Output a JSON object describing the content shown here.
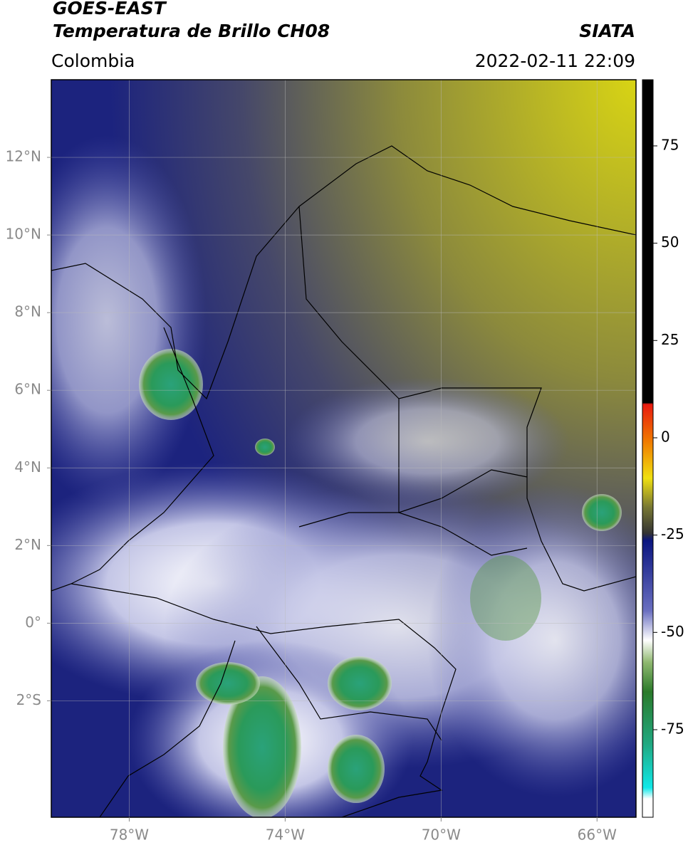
{
  "header": {
    "title": "GOES-EAST",
    "subtitle": "Temperatura de Brillo CH08",
    "source": "SIATA",
    "region": "Colombia",
    "datetime": "2022-02-11 22:09"
  },
  "map": {
    "xlim": [
      -80,
      -65
    ],
    "ylim": [
      -5,
      14
    ],
    "xticks": [
      {
        "value": -78,
        "label": "78°W"
      },
      {
        "value": -74,
        "label": "74°W"
      },
      {
        "value": -70,
        "label": "70°W"
      },
      {
        "value": -66,
        "label": "66°W"
      }
    ],
    "yticks": [
      {
        "value": 12,
        "label": "12°N"
      },
      {
        "value": 10,
        "label": "10°N"
      },
      {
        "value": 8,
        "label": "8°N"
      },
      {
        "value": 6,
        "label": "6°N"
      },
      {
        "value": 4,
        "label": "4°N"
      },
      {
        "value": 2,
        "label": "2°N"
      },
      {
        "value": 0,
        "label": "0°"
      },
      {
        "value": -2,
        "label": "2°S"
      }
    ],
    "grid": true
  },
  "colorbar": {
    "clim": [
      -97.5,
      92
    ],
    "ticks": [
      75,
      50,
      25,
      0,
      -25,
      -50,
      -75
    ]
  }
}
